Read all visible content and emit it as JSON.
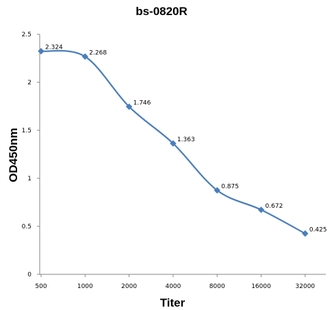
{
  "chart_data": {
    "type": "line",
    "title": "bs-0820R",
    "xlabel": "Titer",
    "ylabel": "OD450nm",
    "categories": [
      "500",
      "1000",
      "2000",
      "4000",
      "8000",
      "16000",
      "32000"
    ],
    "series": [
      {
        "values": [
          2.324,
          2.268,
          1.746,
          1.363,
          0.875,
          0.672,
          0.425
        ],
        "labels": [
          "2.324",
          "2.268",
          "1.746",
          "1.363",
          "0.875",
          "0.672",
          "0.425"
        ],
        "color": "#4a7ebb",
        "marker": "diamond",
        "smooth": true
      }
    ],
    "ylim": [
      0,
      2.5
    ],
    "yticks": [
      "0",
      "0.5",
      "1",
      "1.5",
      "2",
      "2.5"
    ],
    "grid": false,
    "legend": "none"
  }
}
